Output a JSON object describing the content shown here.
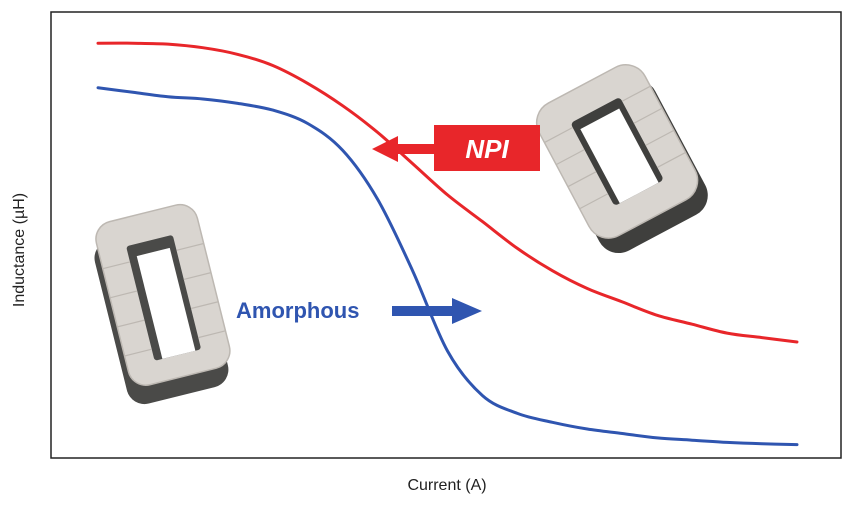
{
  "chart_data": {
    "type": "line",
    "title": "",
    "xlabel": "Current (A)",
    "ylabel": "Inductance (µH)",
    "x_ticks": [],
    "y_ticks": [],
    "grid": false,
    "legend": "none",
    "x": [
      0,
      0.05,
      0.1,
      0.15,
      0.2,
      0.25,
      0.3,
      0.35,
      0.4,
      0.45,
      0.5,
      0.55,
      0.6,
      0.65,
      0.7,
      0.75,
      0.8,
      0.85,
      0.9,
      0.95,
      1.0
    ],
    "series": [
      {
        "name": "NPI",
        "color": "#e8262a",
        "values": [
          0.93,
          0.93,
          0.928,
          0.92,
          0.905,
          0.88,
          0.84,
          0.79,
          0.73,
          0.66,
          0.59,
          0.53,
          0.47,
          0.42,
          0.38,
          0.35,
          0.32,
          0.3,
          0.28,
          0.27,
          0.26
        ]
      },
      {
        "name": "Amorphous",
        "color": "#2f55b0",
        "values": [
          0.83,
          0.82,
          0.81,
          0.805,
          0.795,
          0.78,
          0.75,
          0.69,
          0.58,
          0.42,
          0.24,
          0.14,
          0.1,
          0.08,
          0.065,
          0.055,
          0.045,
          0.04,
          0.035,
          0.032,
          0.03
        ]
      }
    ]
  },
  "annotations": {
    "npi_label": "NPI",
    "amorphous_label": "Amorphous"
  },
  "colors": {
    "npi": "#e8262a",
    "amorphous": "#2f55b0",
    "core_face": "#d9d5d0",
    "core_side": "#4a4a48"
  },
  "images": {
    "left_core": "core-icon",
    "right_core": "core-icon"
  }
}
